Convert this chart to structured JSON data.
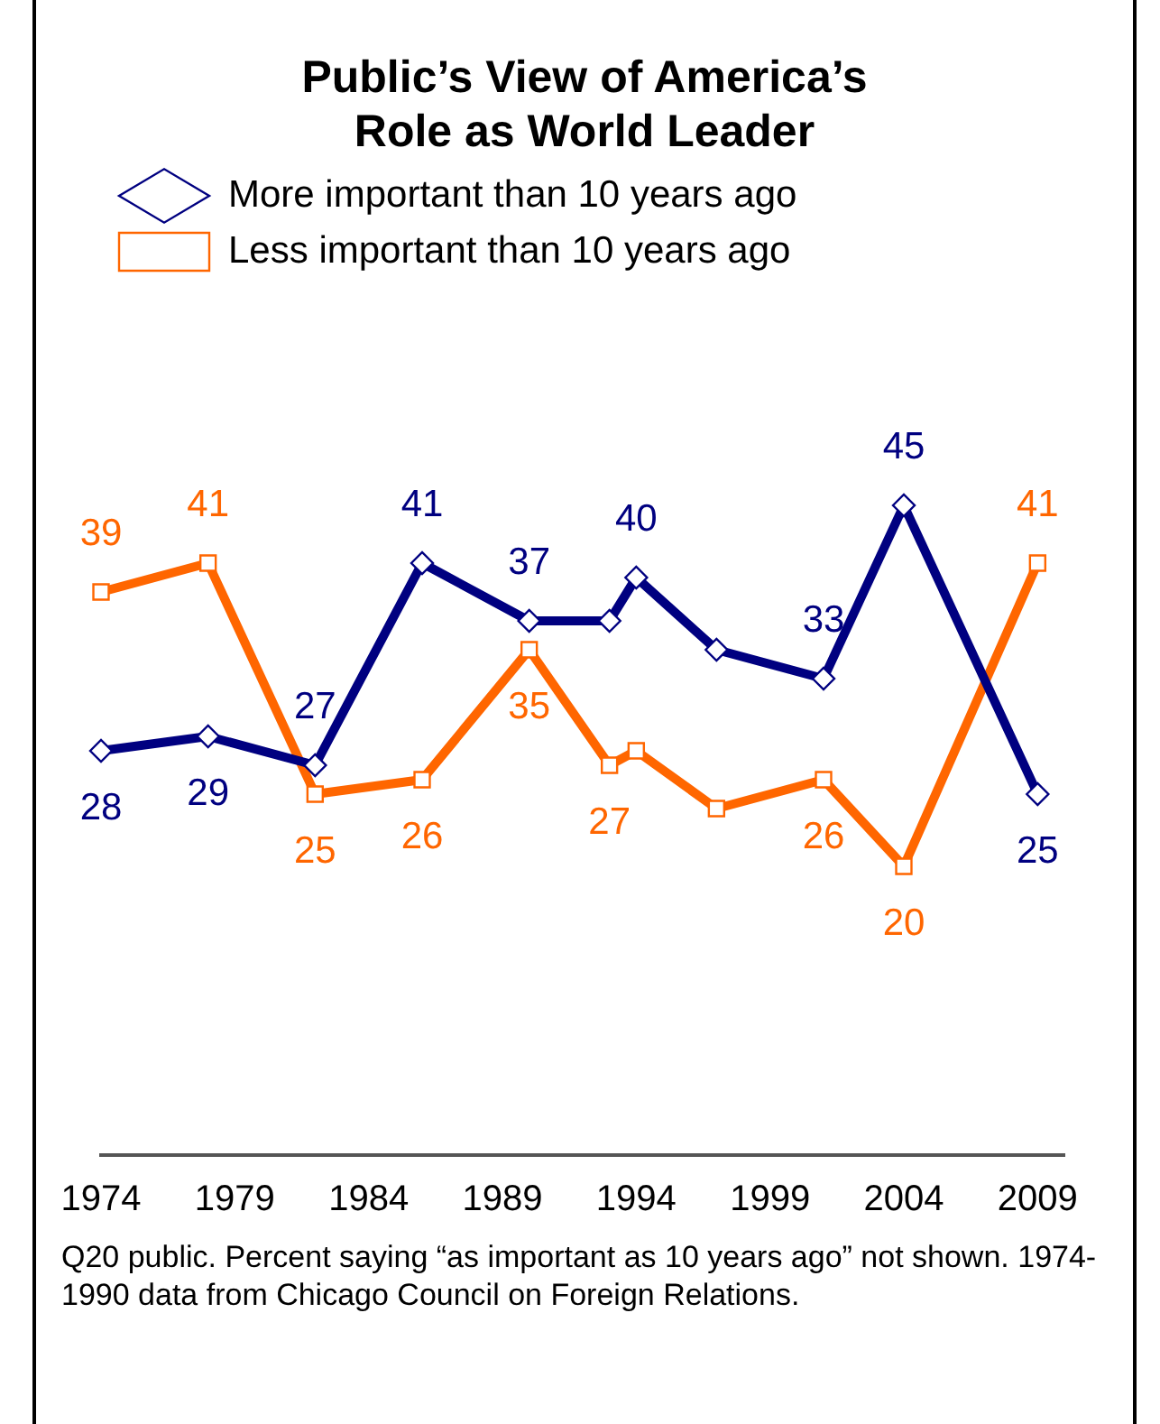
{
  "chart_data": {
    "type": "line",
    "title": "Public’s View of America’s\nRole as World Leader",
    "x": [
      1974,
      1978,
      1982,
      1986,
      1990,
      1993,
      1994,
      1997,
      2001,
      2004,
      2009
    ],
    "series": [
      {
        "name": "More important than 10 years ago",
        "color": "#000080",
        "marker": "diamond",
        "values": [
          28,
          29,
          27,
          41,
          37,
          37,
          40,
          35,
          33,
          45,
          25
        ],
        "value_labels": [
          "28",
          "29",
          "27",
          "41",
          "37",
          null,
          "40",
          null,
          "33",
          "45",
          "25"
        ]
      },
      {
        "name": "Less important than 10 years ago",
        "color": "#ff6600",
        "marker": "square",
        "values": [
          39,
          41,
          25,
          26,
          35,
          27,
          28,
          24,
          26,
          20,
          41
        ],
        "value_labels": [
          "39",
          "41",
          "25",
          "26",
          "35",
          "27",
          null,
          null,
          "26",
          "20",
          "41"
        ]
      }
    ],
    "xlim": [
      1974,
      2010
    ],
    "xticks": [
      1974,
      1979,
      1984,
      1989,
      1994,
      1999,
      2004,
      2009
    ],
    "tick_labels": "x",
    "grid": false,
    "legend": "top",
    "line_style": "solid",
    "annotations": [
      "Q20 public. Percent saying “as important as 10 years ago” not shown. 1974-1990 data from Chicago Council on Foreign Relations."
    ]
  }
}
